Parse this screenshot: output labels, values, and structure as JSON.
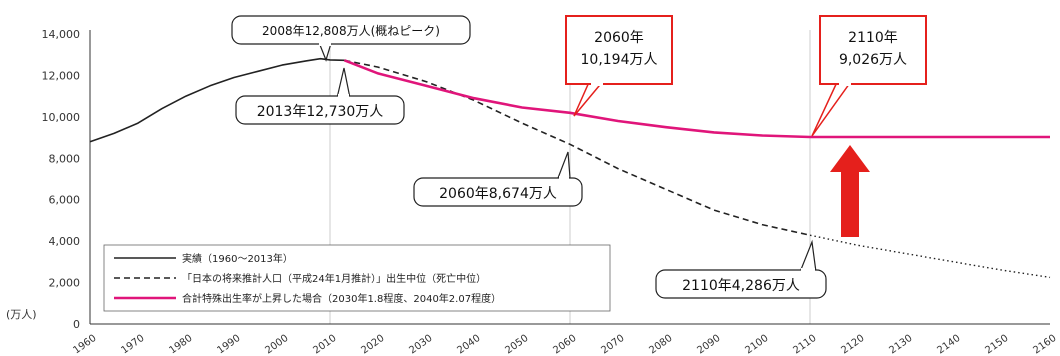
{
  "chart_data": {
    "type": "line",
    "ylabel": "(万人)",
    "ylim": [
      0,
      14000
    ],
    "xlim": [
      1960,
      2160
    ],
    "y_ticks": [
      "0",
      "2,000",
      "4,000",
      "6,000",
      "8,000",
      "10,000",
      "12,000",
      "14,000"
    ],
    "x_ticks": [
      "1960",
      "1970",
      "1980",
      "1990",
      "2000",
      "2010",
      "2020",
      "2030",
      "2040",
      "2050",
      "2060",
      "2070",
      "2080",
      "2090",
      "2100",
      "2110",
      "2120",
      "2130",
      "2140",
      "2150",
      "2160"
    ],
    "grid": "vertical-at-2010-2060-2110",
    "legend_position": "bottom-left",
    "series": [
      {
        "name": "実績（1960～2013年）",
        "style": "solid",
        "color": "#222222",
        "x": [
          1960,
          1965,
          1970,
          1975,
          1980,
          1985,
          1990,
          1995,
          2000,
          2005,
          2008,
          2010,
          2013
        ],
        "values": [
          8800,
          9200,
          9700,
          10400,
          11000,
          11500,
          11900,
          12200,
          12500,
          12700,
          12808,
          12750,
          12730
        ]
      },
      {
        "name": "「日本の将来推計人口（平成24年1月推計）」出生中位（死亡中位）",
        "style": "dashed",
        "color": "#222222",
        "x": [
          2013,
          2020,
          2030,
          2040,
          2050,
          2060,
          2070,
          2080,
          2090,
          2100,
          2110
        ],
        "values": [
          12730,
          12400,
          11700,
          10800,
          9700,
          8674,
          7500,
          6500,
          5500,
          4800,
          4286
        ]
      },
      {
        "name": "",
        "style": "dotted",
        "color": "#222222",
        "x": [
          2110,
          2120,
          2130,
          2140,
          2150,
          2160
        ],
        "values": [
          4286,
          3800,
          3400,
          3000,
          2600,
          2250
        ]
      },
      {
        "name": "合計特殊出生率が上昇した場合（2030年1.8程度、2040年2.07程度）",
        "style": "solid",
        "color": "#e0157a",
        "x": [
          2013,
          2020,
          2030,
          2040,
          2050,
          2060,
          2070,
          2080,
          2090,
          2100,
          2110,
          2120,
          2130,
          2140,
          2150,
          2160
        ],
        "values": [
          12730,
          12100,
          11500,
          10900,
          10450,
          10194,
          9800,
          9500,
          9250,
          9100,
          9026,
          9026,
          9026,
          9026,
          9026,
          9026
        ]
      }
    ],
    "annotations": [
      {
        "text": "2008年12,808万人(概ねピーク)",
        "x": 2008,
        "y": 12808
      },
      {
        "text": "2013年12,730万人",
        "x": 2013,
        "y": 12730
      },
      {
        "text": "2060年8,674万人",
        "x": 2060,
        "y": 8674
      },
      {
        "text": "2110年4,286万人",
        "x": 2110,
        "y": 4286
      },
      {
        "line1": "2060年",
        "line2": "10,194万人",
        "x": 2060,
        "y": 10194
      },
      {
        "line1": "2110年",
        "line2": "9,026万人",
        "x": 2110,
        "y": 9026
      }
    ],
    "arrow_color": "#e5201c"
  }
}
